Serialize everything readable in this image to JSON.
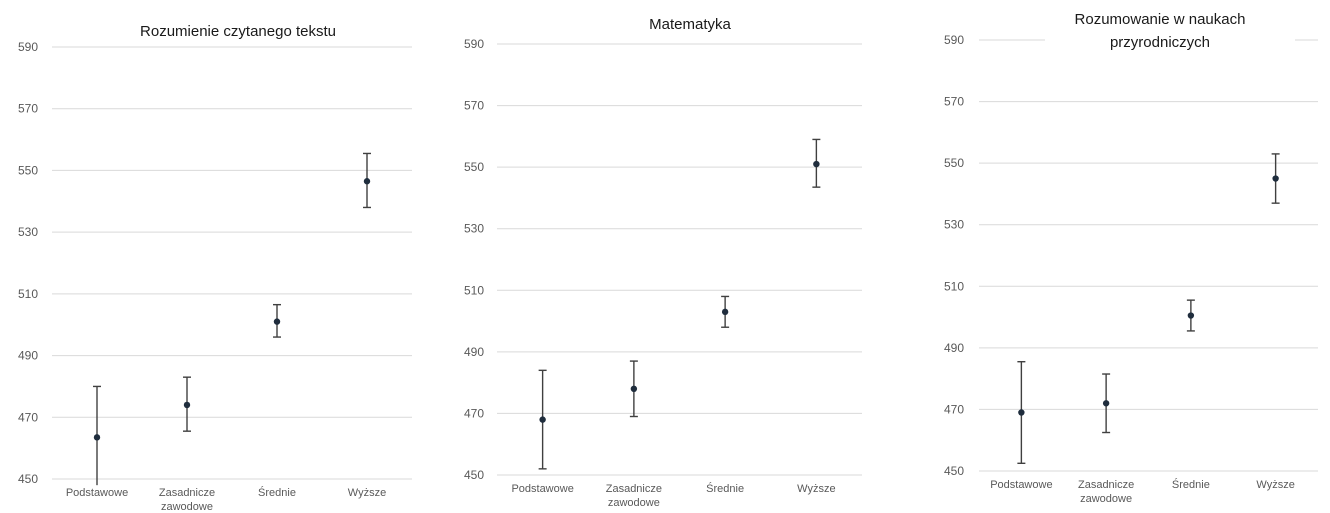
{
  "chart_data": [
    {
      "type": "scatter",
      "title": "Rozumienie czytanego tekstu",
      "categories": [
        "Podstawowe",
        "Zasadnicze zawodowe",
        "Średnie",
        "Wyższe"
      ],
      "ylim": [
        450,
        590
      ],
      "yticks": [
        450,
        470,
        490,
        510,
        530,
        550,
        570,
        590
      ],
      "grid": true,
      "series": [
        {
          "values": [
            463.5,
            474,
            501,
            546.5
          ],
          "error_low": [
            448,
            465.5,
            496,
            538
          ],
          "error_high": [
            480,
            483,
            506.5,
            555.5
          ]
        }
      ]
    },
    {
      "type": "scatter",
      "title": "Matematyka",
      "categories": [
        "Podstawowe",
        "Zasadnicze zawodowe",
        "Średnie",
        "Wyższe"
      ],
      "ylim": [
        450,
        590
      ],
      "yticks": [
        450,
        470,
        490,
        510,
        530,
        550,
        570,
        590
      ],
      "grid": true,
      "series": [
        {
          "values": [
            468,
            478,
            503,
            551
          ],
          "error_low": [
            452,
            469,
            498,
            543.5
          ],
          "error_high": [
            484,
            487,
            508,
            559
          ]
        }
      ]
    },
    {
      "type": "scatter",
      "title": "Rozumowanie w naukach przyrodniczych",
      "categories": [
        "Podstawowe",
        "Zasadnicze zawodowe",
        "Średnie",
        "Wyższe"
      ],
      "ylim": [
        450,
        590
      ],
      "yticks": [
        450,
        470,
        490,
        510,
        530,
        550,
        570,
        590
      ],
      "grid": true,
      "series": [
        {
          "values": [
            469,
            472,
            500.5,
            545
          ],
          "error_low": [
            452.5,
            462.5,
            495.5,
            537
          ],
          "error_high": [
            485.5,
            481.5,
            505.5,
            553
          ]
        }
      ]
    }
  ]
}
